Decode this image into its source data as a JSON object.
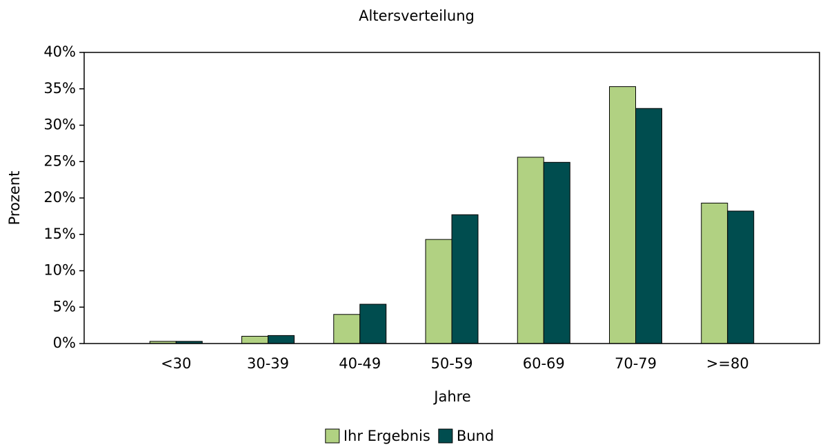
{
  "chart_data": {
    "type": "bar",
    "title": "Altersverteilung",
    "x_label": "Jahre",
    "y_label": "Prozent",
    "categories": [
      "<30",
      "30-39",
      "40-49",
      "50-59",
      "60-69",
      "70-79",
      ">=80"
    ],
    "series": [
      {
        "name": "Ihr Ergebnis",
        "color": "#b1d182",
        "values": [
          0.3,
          1.0,
          4.0,
          14.3,
          25.6,
          35.3,
          19.3
        ]
      },
      {
        "name": "Bund",
        "color": "#004d4f",
        "values": [
          0.3,
          1.1,
          5.4,
          17.7,
          24.9,
          32.3,
          18.2
        ]
      }
    ],
    "ylim": [
      0,
      40
    ],
    "yticks": [
      {
        "value": 0,
        "label": "0%"
      },
      {
        "value": 5,
        "label": "5%"
      },
      {
        "value": 10,
        "label": "10%"
      },
      {
        "value": 15,
        "label": "15%"
      },
      {
        "value": 20,
        "label": "20%"
      },
      {
        "value": 25,
        "label": "25%"
      },
      {
        "value": 30,
        "label": "30%"
      },
      {
        "value": 35,
        "label": "35%"
      },
      {
        "value": 40,
        "label": "40%"
      }
    ],
    "legend": "bottom"
  }
}
